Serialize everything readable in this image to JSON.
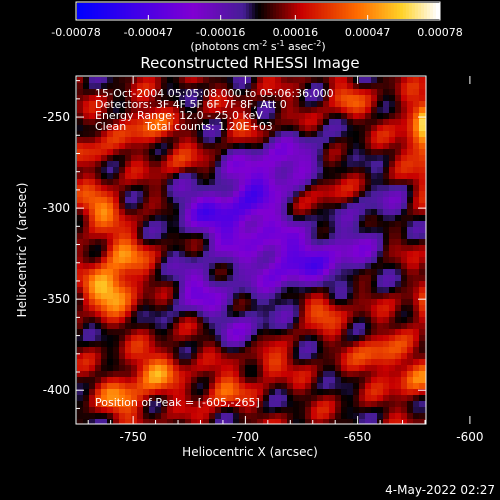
{
  "chart_data": {
    "type": "heatmap",
    "title": "Reconstructed RHESSI Image",
    "xlabel": "Heliocentric X (arcsec)",
    "ylabel": "Heliocentric Y (arcsec)",
    "xlim": [
      -775,
      -620
    ],
    "ylim": [
      -418,
      -228
    ],
    "x_ticks": [
      -750,
      -700,
      -650,
      -600
    ],
    "y_ticks": [
      -250,
      -300,
      -350,
      -400
    ],
    "colorbar": {
      "range": [
        -0.00078,
        0.00078
      ],
      "tick_values": [
        -0.00078,
        -0.00047,
        -0.00016,
        0.00016,
        0.00047,
        0.00078
      ],
      "tick_labels": [
        "-0.00078",
        "-0.00047",
        "-0.00016",
        "0.00016",
        "0.00047",
        "0.00078"
      ],
      "units_label_main": "(photons cm",
      "units_sup_1": "-2",
      "units_mid": " s",
      "units_sup_2": "-1",
      "units_mid_2": " asec",
      "units_sup_3": "-2",
      "units_tail": ")"
    },
    "annotations": {
      "time_range": "15-Oct-2004 05:05:08.000 to 05:06:36.000",
      "detectors": "Detectors: 3F 4F 5F 6F 7F 8F, Att 0",
      "energy": "Energy Range: 12.0 - 25.0 keV",
      "algorithm": "Clean",
      "counts": "Total counts: 1.20E+03",
      "peak": "Position of Peak = [-605,-265]"
    },
    "peak_position": [
      -605,
      -265
    ],
    "blobs": [
      {
        "x": -612,
        "y": -265,
        "a": 4.6,
        "r": 12
      },
      {
        "x": -618,
        "y": -250,
        "a": 2.6,
        "r": 12
      },
      {
        "x": -605,
        "y": -290,
        "a": 2.6,
        "r": 14
      },
      {
        "x": -595,
        "y": -320,
        "a": 2.2,
        "r": 13
      },
      {
        "x": -760,
        "y": -345,
        "a": 3.6,
        "r": 11
      },
      {
        "x": -755,
        "y": -325,
        "a": 2.4,
        "r": 10
      },
      {
        "x": -765,
        "y": -300,
        "a": 2.4,
        "r": 10
      },
      {
        "x": -740,
        "y": -390,
        "a": 2.2,
        "r": 12
      },
      {
        "x": -755,
        "y": -405,
        "a": 2.2,
        "r": 10
      },
      {
        "x": -745,
        "y": -255,
        "a": 2.2,
        "r": 10
      },
      {
        "x": -770,
        "y": -270,
        "a": 1.8,
        "r": 8
      },
      {
        "x": -710,
        "y": -400,
        "a": 2.0,
        "r": 9
      },
      {
        "x": -690,
        "y": -385,
        "a": 1.8,
        "r": 8
      },
      {
        "x": -665,
        "y": -355,
        "a": 2.0,
        "r": 9
      },
      {
        "x": -640,
        "y": -380,
        "a": 2.2,
        "r": 10
      },
      {
        "x": -615,
        "y": -355,
        "a": 2.6,
        "r": 10
      },
      {
        "x": -625,
        "y": -395,
        "a": 2.0,
        "r": 10
      },
      {
        "x": -655,
        "y": -240,
        "a": 1.6,
        "r": 8
      },
      {
        "x": -665,
        "y": -290,
        "a": 1.4,
        "r": 8
      },
      {
        "x": -730,
        "y": -275,
        "a": 1.2,
        "r": 8
      },
      {
        "x": -700,
        "y": -255,
        "a": 1.4,
        "r": 7
      },
      {
        "x": -705,
        "y": -305,
        "a": -3.2,
        "r": 18
      },
      {
        "x": -680,
        "y": -330,
        "a": -3.0,
        "r": 18
      },
      {
        "x": -690,
        "y": -280,
        "a": -2.6,
        "r": 16
      },
      {
        "x": -720,
        "y": -345,
        "a": -2.2,
        "r": 14
      },
      {
        "x": -655,
        "y": -325,
        "a": -1.8,
        "r": 14
      },
      {
        "x": -640,
        "y": -300,
        "a": -1.4,
        "r": 12
      },
      {
        "x": -700,
        "y": -365,
        "a": -1.6,
        "r": 12
      },
      {
        "x": -725,
        "y": -300,
        "a": -1.2,
        "r": 12
      },
      {
        "x": -670,
        "y": -270,
        "a": -1.2,
        "r": 12
      }
    ]
  },
  "footer": {
    "timestamp": "4-May-2022 02:27"
  }
}
